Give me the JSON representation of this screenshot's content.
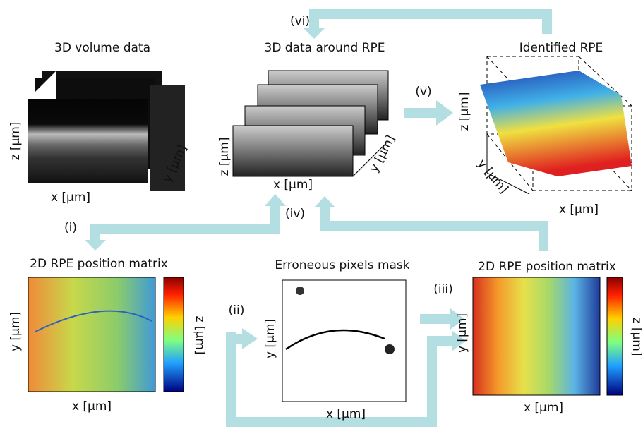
{
  "panels": [
    {
      "title": "3D volume data",
      "x_label": "x [μm]",
      "y_label": "y [μm]",
      "z_label": "z [μm]"
    },
    {
      "title": "3D data around RPE",
      "x_label": "x [μm]",
      "y_label": "y [μm]",
      "z_label": "z [μm]"
    },
    {
      "title": "Identified RPE",
      "x_label": "x [μm]",
      "y_label": "y [μm]",
      "z_label": "z [μm]"
    },
    {
      "title": "2D RPE position matrix",
      "x_label": "x [μm]",
      "y_label": "y [μm]",
      "colorbar_label": "z [μm]"
    },
    {
      "title": "Erroneous pixels mask",
      "x_label": "x [μm]",
      "y_label": "y [μm]"
    },
    {
      "title": "2D RPE position matrix",
      "x_label": "x [μm]",
      "y_label": "y [μm]",
      "colorbar_label": "z [μm]"
    }
  ],
  "steps": [
    "(i)",
    "(ii)",
    "(iii)",
    "(iv)",
    "(v)",
    "(vi)"
  ]
}
